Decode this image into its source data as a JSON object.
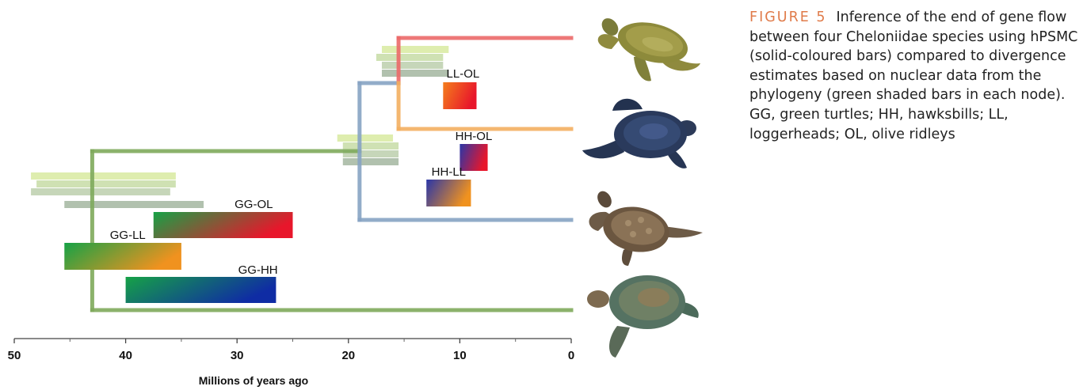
{
  "figure": {
    "label": "FIGURE 5",
    "caption": "Inference of the end of gene flow between four Cheloniidae species using hPSMC (solid-coloured bars) compared to divergence estimates based on nuclear data from the phylogeny (green shaded bars in each node). GG, green turtles; HH, hawksbills; LL, loggerheads; OL, olive ridleys"
  },
  "chart_data": {
    "type": "phylogeny-timeline",
    "xlabel": "Millions of years ago",
    "xlim": [
      50,
      0
    ],
    "xticks": [
      50,
      40,
      30,
      20,
      10,
      0
    ],
    "minor_ticks": [
      45,
      35,
      25,
      15,
      5
    ],
    "tree": {
      "root_node_mya": 43,
      "inner_node_mya": 19,
      "top_node_mya": 15.5,
      "colors": {
        "root": "#7faa5c",
        "inner": "#87a4c4",
        "top_upper": "#ec6a6a",
        "top_lower": "#f3b061"
      }
    },
    "hpsmc_bars": [
      {
        "label": "LL-OL",
        "start": 11.5,
        "end": 8.5,
        "color_from": "#f47e1c",
        "color_to": "#e8162b"
      },
      {
        "label": "HH-OL",
        "start": 10,
        "end": 7.5,
        "color_from": "#2a36a8",
        "color_to": "#e8162b"
      },
      {
        "label": "HH-LL",
        "start": 13,
        "end": 9,
        "color_from": "#2a36a8",
        "color_to": "#f0921f"
      },
      {
        "label": "GG-OL",
        "start": 37.5,
        "end": 25,
        "color_from": "#16a246",
        "color_to": "#e8162b"
      },
      {
        "label": "GG-LL",
        "start": 45.5,
        "end": 35,
        "color_from": "#16a246",
        "color_to": "#f0921f"
      },
      {
        "label": "GG-HH",
        "start": 40,
        "end": 26.5,
        "color_from": "#16a246",
        "color_to": "#0f2ca4"
      }
    ],
    "node_divergence_bars": [
      {
        "node": "top",
        "bars": [
          [
            17,
            11
          ],
          [
            17.5,
            11.5
          ],
          [
            17,
            11.5
          ],
          [
            17,
            11
          ]
        ]
      },
      {
        "node": "inner",
        "bars": [
          [
            21,
            16
          ],
          [
            20.5,
            15.5
          ],
          [
            20.5,
            15.5
          ],
          [
            20.5,
            15.5
          ]
        ]
      },
      {
        "node": "root",
        "bars": [
          [
            48.5,
            35.5
          ],
          [
            48,
            35.5
          ],
          [
            48.5,
            36
          ],
          [
            45.5,
            33
          ]
        ]
      }
    ]
  },
  "species_images": [
    "olive-ridley-turtle",
    "loggerhead-turtle",
    "hawksbill-turtle",
    "green-turtle"
  ]
}
